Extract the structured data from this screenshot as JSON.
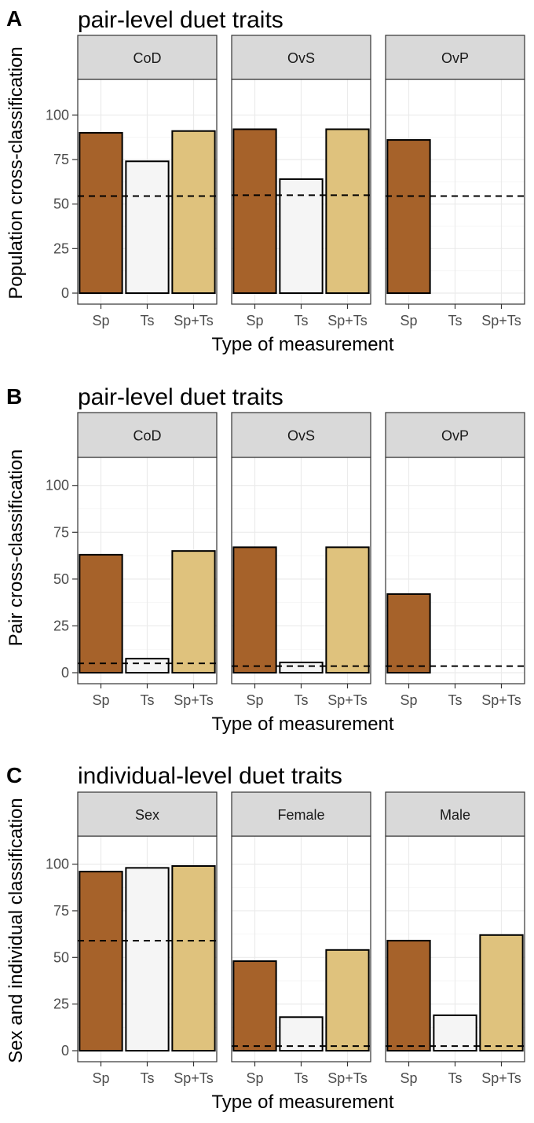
{
  "colors": {
    "Sp": "#a6622a",
    "Ts": "#f5f5f5",
    "Sp+Ts": "#dfc27d"
  },
  "chart_data": [
    {
      "type": "bar",
      "panel_label": "A",
      "title": "pair-level duet traits",
      "xlabel": "Type of measurement",
      "ylabel": "Population cross-classification",
      "ylim": [
        0,
        120
      ],
      "yticks": [
        0,
        25,
        50,
        75,
        100
      ],
      "categories": [
        "Sp",
        "Ts",
        "Sp+Ts"
      ],
      "facets": [
        {
          "name": "CoD",
          "values": [
            90,
            74,
            91
          ],
          "reference": 54.5
        },
        {
          "name": "OvS",
          "values": [
            92,
            64,
            92
          ],
          "reference": 55
        },
        {
          "name": "OvP",
          "values": [
            86,
            null,
            null
          ],
          "reference": 54.5
        }
      ]
    },
    {
      "type": "bar",
      "panel_label": "B",
      "title": "pair-level duet traits",
      "xlabel": "Type of measurement",
      "ylabel": "Pair cross-classification",
      "ylim": [
        0,
        115
      ],
      "yticks": [
        0,
        25,
        50,
        75,
        100
      ],
      "categories": [
        "Sp",
        "Ts",
        "Sp+Ts"
      ],
      "facets": [
        {
          "name": "CoD",
          "values": [
            63,
            7.5,
            65
          ],
          "reference": 5
        },
        {
          "name": "OvS",
          "values": [
            67,
            5.5,
            67
          ],
          "reference": 3.5
        },
        {
          "name": "OvP",
          "values": [
            42,
            null,
            null
          ],
          "reference": 3.5
        }
      ]
    },
    {
      "type": "bar",
      "panel_label": "C",
      "title": "individual-level duet traits",
      "xlabel": "Type of measurement",
      "ylabel": "Sex and individual classification",
      "ylim": [
        0,
        115
      ],
      "yticks": [
        0,
        25,
        50,
        75,
        100
      ],
      "categories": [
        "Sp",
        "Ts",
        "Sp+Ts"
      ],
      "facets": [
        {
          "name": "Sex",
          "values": [
            96,
            98,
            99
          ],
          "reference": 59
        },
        {
          "name": "Female",
          "values": [
            48,
            18,
            54
          ],
          "reference": 2.5
        },
        {
          "name": "Male",
          "values": [
            59,
            19,
            62
          ],
          "reference": 2.5
        }
      ]
    }
  ]
}
